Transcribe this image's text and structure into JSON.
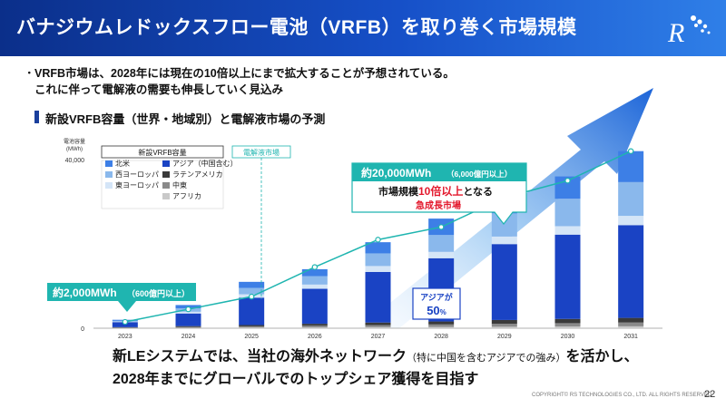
{
  "header": {
    "title": "バナジウムレドックスフロー電池（VRFB）を取り巻く市場規模"
  },
  "bullet": {
    "dot": "・",
    "line1": "VRFB市場は、2028年には現在の10倍以上にまで拡大することが予想されている。",
    "line2": "これに伴って電解液の需要も伸長していく見込み"
  },
  "section_title": "新設VRFB容量（世界・地域別）と電解液市場の予測",
  "chart_data": {
    "type": "bar",
    "stacked": true,
    "ylabel": "電池容量\n(MWh)",
    "ylim": [
      0,
      40000
    ],
    "yticks": [
      "40,000",
      "0"
    ],
    "categories": [
      "2023",
      "2024",
      "2025",
      "2026",
      "2027",
      "2028",
      "2029",
      "2030",
      "2031"
    ],
    "series": [
      {
        "name": "アフリカ",
        "color": "#c9c9c9",
        "values": [
          50,
          100,
          150,
          200,
          250,
          300,
          350,
          400,
          450
        ]
      },
      {
        "name": "中東",
        "color": "#8a8a8a",
        "values": [
          100,
          200,
          300,
          400,
          500,
          600,
          700,
          800,
          900
        ]
      },
      {
        "name": "ラテンアメリカ",
        "color": "#3a3a3a",
        "values": [
          100,
          200,
          300,
          450,
          600,
          700,
          900,
          1000,
          1100
        ]
      },
      {
        "name": "アジア（中国含む）",
        "color": "#1a43c4",
        "values": [
          1200,
          3000,
          6500,
          8300,
          12000,
          15000,
          18000,
          20000,
          22000
        ]
      },
      {
        "name": "東ヨーロッパ",
        "color": "#d4e5f7",
        "values": [
          100,
          400,
          800,
          1000,
          1400,
          1500,
          1800,
          2000,
          2200
        ]
      },
      {
        "name": "西ヨーロッパ",
        "color": "#8ab8ec",
        "values": [
          200,
          800,
          1500,
          2000,
          3000,
          4000,
          5500,
          6500,
          8000
        ]
      },
      {
        "name": "北米",
        "color": "#3d7fe6",
        "values": [
          250,
          800,
          1450,
          1650,
          2650,
          3900,
          4250,
          5300,
          7350
        ]
      }
    ],
    "line": {
      "name": "電解液市場",
      "color": "#1fb5b0",
      "values": [
        1500,
        4500,
        7500,
        14500,
        21000,
        24000,
        31000,
        35000,
        42000
      ]
    },
    "legend_header": "新設VRFB容量",
    "line_legend": "電解液市場",
    "legend": "top-left"
  },
  "callouts": {
    "left": {
      "main": "約2,000MWh",
      "sub": "（600億円以上）"
    },
    "right": {
      "main": "約20,000MWh",
      "sub": "（6,000億円以上）",
      "line2a": "市場規模",
      "line2b": "10倍以上",
      "line2c": "となる",
      "line3": "急成長市場"
    },
    "asia": {
      "label": "アジアが",
      "value": "50",
      "unit": "%"
    }
  },
  "bottom": {
    "line1a": "新LEシステムでは、当社の海外ネットワーク",
    "line1b": "（特に中国を含むアジアでの強み）",
    "line1c": "を活かし、",
    "line2": "2028年までにグローバルでのトップシェア獲得を目指す"
  },
  "footer": {
    "copyright": "COPYRIGHT© RS TECHNOLOGIES CO., LTD. ALL RIGHTS RESERVED",
    "page": "22"
  },
  "colors": {
    "header_start": "#0b2f8a",
    "header_end": "#2f7fe8",
    "accent_teal": "#1fb5b0",
    "highlight_red": "#e3192d"
  }
}
